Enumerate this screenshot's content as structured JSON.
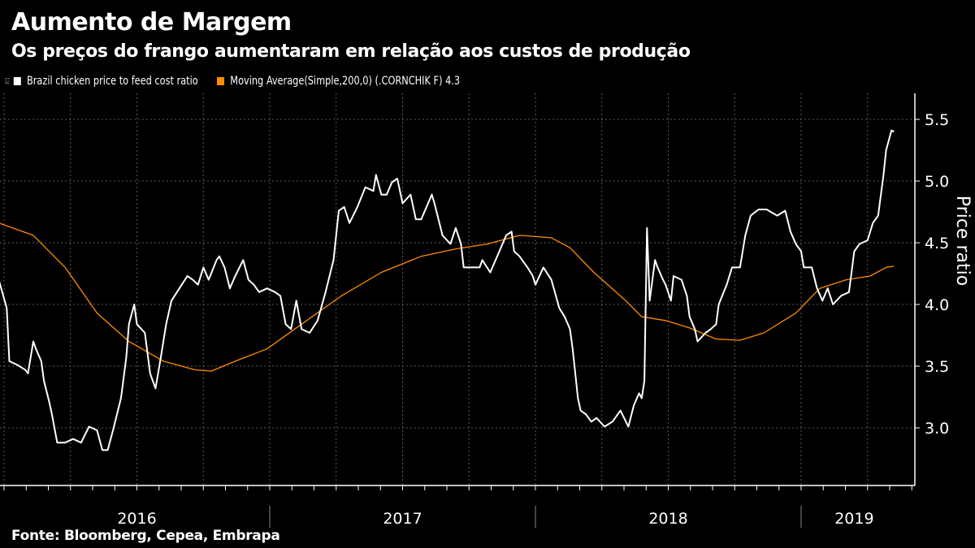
{
  "header": {
    "title": "Aumento de Margem",
    "subtitle": "Os preços do frango aumentaram em relação aos custos de produção"
  },
  "footer": {
    "source": "Fonte: Bloomberg, Cepea, Embrapa"
  },
  "colors": {
    "background": "#000000",
    "series1": "#ffffff",
    "series2": "#ff8c00",
    "grid": "#666666"
  },
  "chart_data": {
    "type": "line",
    "title": "Aumento de Margem",
    "ylabel": "Price ratio",
    "xlabel": "",
    "ylim": [
      2.53,
      5.71
    ],
    "xlim": [
      2015.98,
      2019.43
    ],
    "yticks": [
      3.0,
      3.5,
      4.0,
      4.5,
      5.0,
      5.5
    ],
    "ytick_labels": [
      "3.0",
      "3.5",
      "4.0",
      "4.5",
      "5.0",
      "5.5"
    ],
    "year_labels": [
      {
        "label": "2016",
        "center": 2016.5
      },
      {
        "label": "2017",
        "center": 2017.5
      },
      {
        "label": "2018",
        "center": 2018.5
      },
      {
        "label": "2019",
        "center": 2019.2
      }
    ],
    "grid": true,
    "legend_position": "top-left",
    "series": [
      {
        "name": "Brazil chicken price to feed cost ratio",
        "color": "#ffffff",
        "x": [
          2015.98,
          2016.01,
          2016.02,
          2016.05,
          2016.08,
          2016.09,
          2016.11,
          2016.12,
          2016.14,
          2016.15,
          2016.17,
          2016.18,
          2016.2,
          2016.23,
          2016.26,
          2016.29,
          2016.32,
          2016.35,
          2016.37,
          2016.39,
          2016.41,
          2016.44,
          2016.46,
          2016.47,
          2016.49,
          2016.5,
          2016.53,
          2016.55,
          2016.57,
          2016.59,
          2016.61,
          2016.63,
          2016.66,
          2016.69,
          2016.71,
          2016.73,
          2016.75,
          2016.77,
          2016.8,
          2016.81,
          2016.83,
          2016.85,
          2016.87,
          2016.9,
          2016.92,
          2016.94,
          2016.96,
          2016.99,
          2017.02,
          2017.04,
          2017.06,
          2017.08,
          2017.1,
          2017.12,
          2017.15,
          2017.18,
          2017.21,
          2017.24,
          2017.26,
          2017.28,
          2017.3,
          2017.33,
          2017.36,
          2017.39,
          2017.4,
          2017.42,
          2017.44,
          2017.46,
          2017.48,
          2017.5,
          2017.53,
          2017.55,
          2017.57,
          2017.61,
          2017.62,
          2017.65,
          2017.68,
          2017.7,
          2017.72,
          2017.73,
          2017.76,
          2017.79,
          2017.8,
          2017.83,
          2017.87,
          2017.89,
          2017.91,
          2017.92,
          2017.94,
          2017.97,
          2017.99,
          2018.0,
          2018.03,
          2018.06,
          2018.09,
          2018.11,
          2018.13,
          2018.14,
          2018.16,
          2018.17,
          2018.19,
          2018.21,
          2018.23,
          2018.26,
          2018.29,
          2018.32,
          2018.35,
          2018.37,
          2018.39,
          2018.4,
          2018.41,
          2018.42,
          2018.43,
          2018.45,
          2018.46,
          2018.48,
          2018.49,
          2018.51,
          2018.52,
          2018.55,
          2018.57,
          2018.58,
          2018.6,
          2018.61,
          2018.64,
          2018.66,
          2018.68,
          2018.69,
          2018.72,
          2018.74,
          2018.77,
          2018.79,
          2018.81,
          2018.84,
          2018.87,
          2018.91,
          2018.94,
          2018.96,
          2018.98,
          2019.0,
          2019.01,
          2019.04,
          2019.06,
          2019.08,
          2019.1,
          2019.12,
          2019.15,
          2019.18,
          2019.2,
          2019.22,
          2019.25,
          2019.27,
          2019.29,
          2019.31,
          2019.32,
          2019.34,
          2019.35
        ],
        "values": [
          4.2,
          3.97,
          3.54,
          3.51,
          3.47,
          3.44,
          3.7,
          3.64,
          3.54,
          3.38,
          3.21,
          3.11,
          2.88,
          2.88,
          2.91,
          2.88,
          3.01,
          2.98,
          2.82,
          2.82,
          2.98,
          3.24,
          3.57,
          3.84,
          4.0,
          3.84,
          3.77,
          3.44,
          3.32,
          3.57,
          3.84,
          4.03,
          4.13,
          4.23,
          4.2,
          4.16,
          4.3,
          4.2,
          4.36,
          4.39,
          4.3,
          4.13,
          4.23,
          4.36,
          4.2,
          4.16,
          4.1,
          4.13,
          4.1,
          4.07,
          3.84,
          3.8,
          4.03,
          3.8,
          3.77,
          3.87,
          4.1,
          4.36,
          4.76,
          4.79,
          4.66,
          4.79,
          4.95,
          4.92,
          5.05,
          4.89,
          4.89,
          4.99,
          5.02,
          4.82,
          4.89,
          4.69,
          4.69,
          4.89,
          4.82,
          4.56,
          4.49,
          4.62,
          4.49,
          4.3,
          4.3,
          4.3,
          4.36,
          4.26,
          4.46,
          4.56,
          4.59,
          4.43,
          4.39,
          4.3,
          4.23,
          4.16,
          4.3,
          4.2,
          3.97,
          3.9,
          3.8,
          3.64,
          3.24,
          3.14,
          3.11,
          3.05,
          3.08,
          3.01,
          3.05,
          3.14,
          3.01,
          3.18,
          3.28,
          3.24,
          3.38,
          4.62,
          4.03,
          4.36,
          4.3,
          4.2,
          4.16,
          4.03,
          4.23,
          4.2,
          4.07,
          3.9,
          3.8,
          3.7,
          3.77,
          3.8,
          3.84,
          4.0,
          4.16,
          4.3,
          4.3,
          4.56,
          4.72,
          4.77,
          4.77,
          4.72,
          4.76,
          4.59,
          4.49,
          4.43,
          4.3,
          4.3,
          4.13,
          4.03,
          4.13,
          4.0,
          4.07,
          4.1,
          4.43,
          4.49,
          4.52,
          4.66,
          4.72,
          5.05,
          5.25,
          5.41,
          5.4
        ]
      },
      {
        "name": "Moving Average(Simple,200,0) (.CORNCHIK F) 4.3",
        "color": "#ff8c00",
        "x": [
          2015.98,
          2016.11,
          2016.23,
          2016.35,
          2016.47,
          2016.6,
          2016.72,
          2016.78,
          2016.87,
          2016.99,
          2017.12,
          2017.27,
          2017.42,
          2017.57,
          2017.7,
          2017.82,
          2017.94,
          2018.06,
          2018.13,
          2018.22,
          2018.34,
          2018.4,
          2018.49,
          2018.58,
          2018.68,
          2018.77,
          2018.86,
          2018.98,
          2019.07,
          2019.17,
          2019.26,
          2019.32,
          2019.35
        ],
        "values": [
          4.66,
          4.56,
          4.3,
          3.93,
          3.7,
          3.54,
          3.47,
          3.46,
          3.54,
          3.64,
          3.84,
          4.07,
          4.26,
          4.39,
          4.45,
          4.49,
          4.56,
          4.54,
          4.46,
          4.26,
          4.03,
          3.9,
          3.87,
          3.81,
          3.72,
          3.71,
          3.77,
          3.93,
          4.13,
          4.2,
          4.23,
          4.3,
          4.31
        ]
      }
    ]
  }
}
